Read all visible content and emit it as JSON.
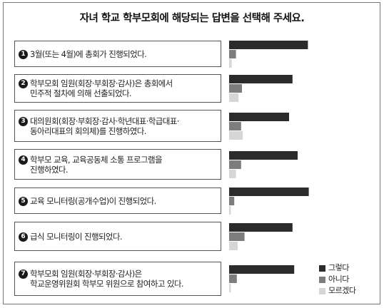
{
  "title": "자녀 학교 학부모회에 해당되는 답변을 선택해 주세요.",
  "colors": {
    "yes": "#2b2b2b",
    "no": "#7d7d7d",
    "unsure": "#d6d6d6"
  },
  "chart_data": {
    "type": "bar",
    "orientation": "horizontal",
    "title": "자녀 학교 학부모회에 해당되는 답변을 선택해 주세요.",
    "legend_position": "bottom-right",
    "grid": false,
    "categories": [
      {
        "num": "1",
        "lines": [
          "3월(또는 4월)에 총회가 진행되었다."
        ]
      },
      {
        "num": "2",
        "lines": [
          "학부모회 임원(회장·부회장·감사)은 총회에서",
          "민주적 절차에 의해 선출되었다."
        ]
      },
      {
        "num": "3",
        "lines": [
          "대의원회(회장·부회장·감사·학년대표·학급대표·",
          "동아리대표의 회의체)를 진행하였다."
        ]
      },
      {
        "num": "4",
        "lines": [
          "학부모 교육, 교육공동체 소통 프로그램을",
          "진행하였다."
        ]
      },
      {
        "num": "5",
        "lines": [
          "교육 모니터링(공개수업)이 진행되었다."
        ]
      },
      {
        "num": "6",
        "lines": [
          "급식 모니터링이 진행되었다."
        ]
      },
      {
        "num": "7",
        "lines": [
          "학부모회 임원(회장·부회장·감사)은",
          "학교운영위원회 학부모 위원으로 참여하고 있다."
        ]
      }
    ],
    "series": [
      {
        "name": "그렇다",
        "color": "#2b2b2b",
        "values": [
          92,
          74,
          70,
          80,
          93,
          74,
          76
        ]
      },
      {
        "name": "아니다",
        "color": "#7d7d7d",
        "values": [
          8,
          15,
          14,
          14,
          6,
          18,
          9
        ]
      },
      {
        "name": "모르겠다",
        "color": "#d6d6d6",
        "values": [
          3,
          11,
          16,
          8,
          2,
          10,
          2
        ]
      }
    ],
    "xlim": [
      0,
      100
    ]
  }
}
